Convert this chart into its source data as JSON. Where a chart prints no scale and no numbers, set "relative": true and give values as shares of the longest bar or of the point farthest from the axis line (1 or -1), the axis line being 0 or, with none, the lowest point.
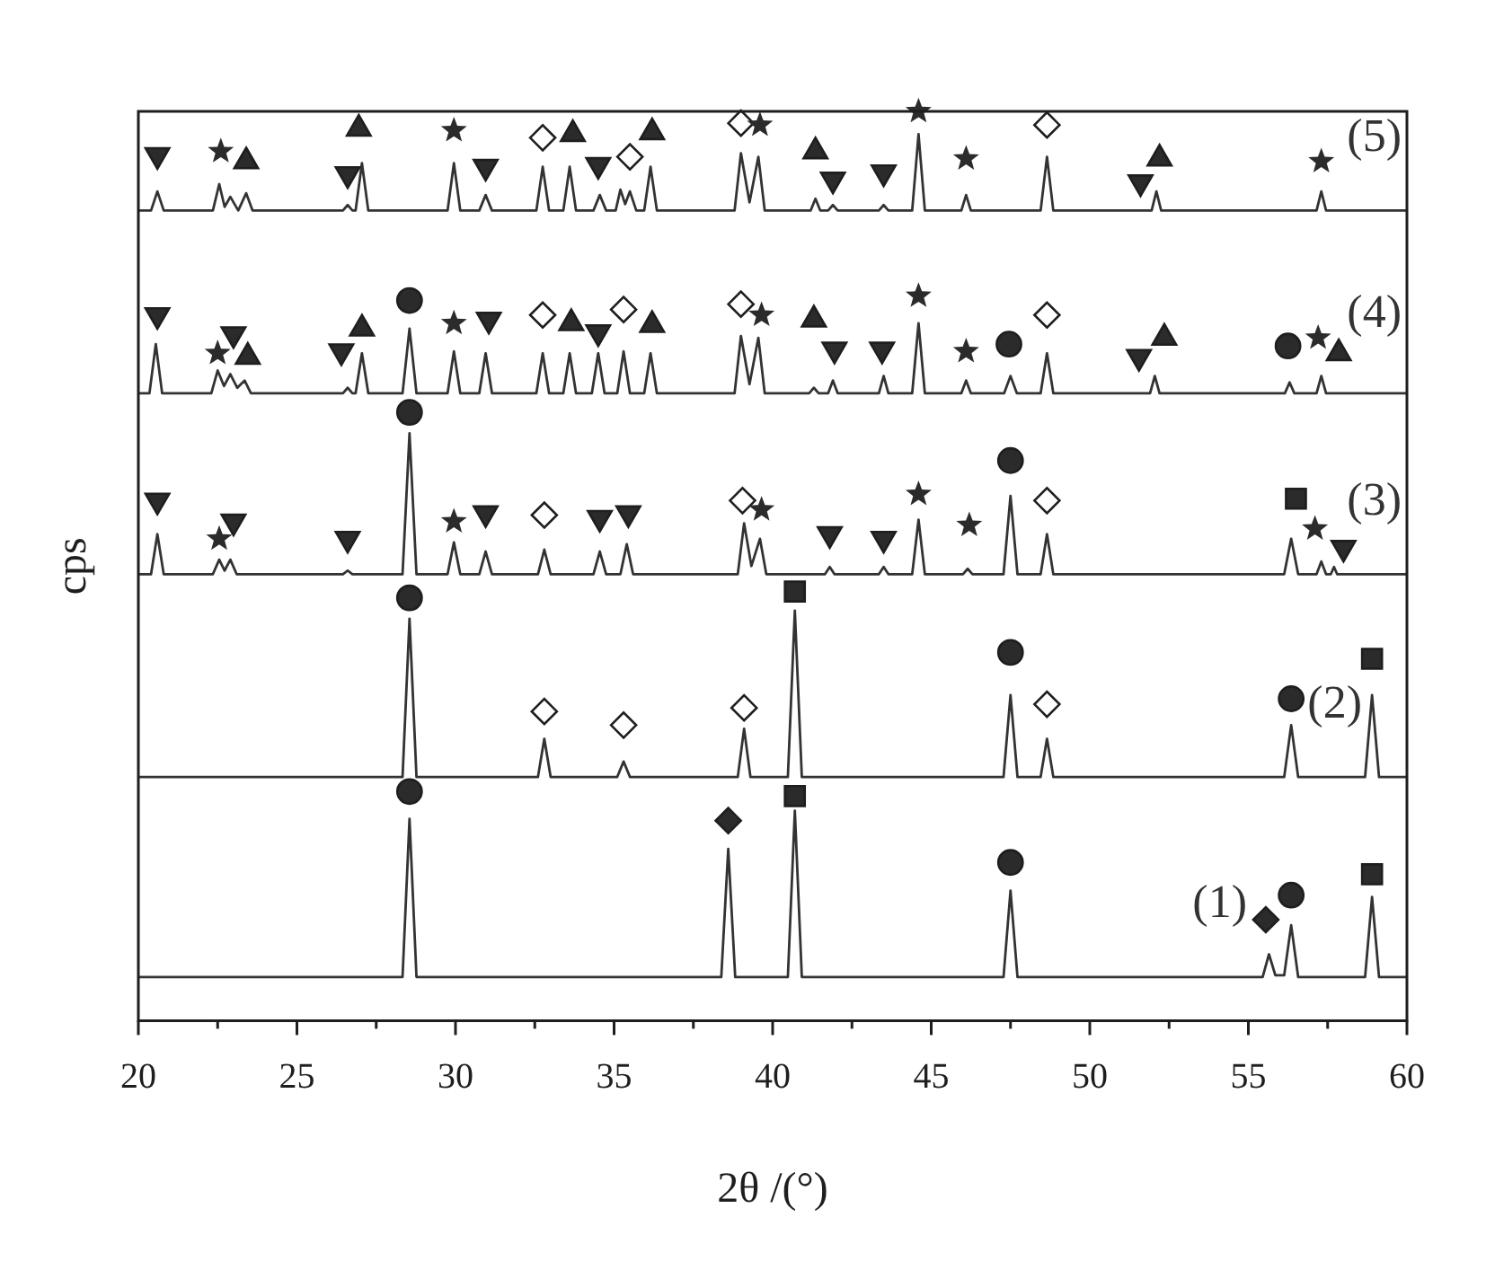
{
  "chart_data": {
    "type": "line",
    "xlabel": "2θ /(°)",
    "ylabel": "cps",
    "relative": true,
    "xlim": [
      20,
      60
    ],
    "xticks": [
      20,
      {
        "value": 22.5,
        "label": null
      },
      25,
      {
        "value": 27.5,
        "label": null
      },
      30,
      {
        "value": 32.5,
        "label": null
      },
      35,
      {
        "value": 37.5,
        "label": null
      },
      40,
      {
        "value": 42.5,
        "label": null
      },
      45,
      {
        "value": 47.5,
        "label": null
      },
      50,
      {
        "value": 52.5,
        "label": null
      },
      55,
      {
        "value": 57.5,
        "label": null
      },
      60
    ],
    "series": [
      {
        "name": "(1)",
        "color": "#333333",
        "x": [
          20,
          28.33,
          28.55,
          28.77,
          38.38,
          38.6,
          38.82,
          40.48,
          40.7,
          40.92,
          47.28,
          47.5,
          47.72,
          55.45,
          55.65,
          55.85,
          56.13,
          56.35,
          56.57,
          58.68,
          58.9,
          59.12,
          60
        ],
        "values": [
          0.048,
          0.048,
          0.222,
          0.048,
          0.048,
          0.189,
          0.048,
          0.048,
          0.231,
          0.048,
          0.048,
          0.143,
          0.048,
          0.048,
          0.073,
          0.05,
          0.05,
          0.105,
          0.048,
          0.048,
          0.136,
          0.048,
          0.048
        ]
      },
      {
        "name": "(2)",
        "color": "#333333",
        "x": [
          20,
          28.33,
          28.55,
          28.77,
          32.6,
          32.8,
          33.0,
          35.1,
          35.3,
          35.5,
          38.9,
          39.1,
          39.3,
          40.48,
          40.7,
          40.92,
          47.28,
          47.5,
          47.72,
          48.45,
          48.65,
          48.85,
          56.13,
          56.35,
          56.57,
          58.68,
          58.9,
          59.12,
          60
        ],
        "values": [
          0.268,
          0.268,
          0.442,
          0.268,
          0.268,
          0.31,
          0.268,
          0.268,
          0.285,
          0.268,
          0.268,
          0.321,
          0.268,
          0.268,
          0.451,
          0.268,
          0.268,
          0.358,
          0.268,
          0.268,
          0.31,
          0.268,
          0.268,
          0.325,
          0.268,
          0.268,
          0.358,
          0.268,
          0.268
        ]
      },
      {
        "name": "(3)",
        "color": "#333333",
        "x": [
          20,
          20.4,
          20.6,
          20.8,
          22.35,
          22.55,
          22.72,
          22.9,
          23.1,
          26.45,
          26.6,
          26.75,
          28.33,
          28.55,
          28.77,
          29.75,
          29.95,
          30.15,
          30.75,
          30.95,
          31.15,
          32.6,
          32.8,
          33.0,
          34.35,
          34.55,
          34.75,
          35.2,
          35.4,
          35.6,
          38.9,
          39.1,
          39.33,
          39.6,
          39.8,
          41.65,
          41.8,
          41.95,
          43.35,
          43.5,
          43.65,
          44.4,
          44.6,
          44.8,
          46.0,
          46.15,
          46.3,
          47.28,
          47.5,
          47.72,
          48.45,
          48.65,
          48.85,
          56.13,
          56.35,
          56.57,
          57.15,
          57.3,
          57.45,
          57.6,
          57.7,
          57.8,
          60
        ],
        "values": [
          0.491,
          0.491,
          0.535,
          0.491,
          0.491,
          0.507,
          0.495,
          0.507,
          0.491,
          0.491,
          0.495,
          0.491,
          0.491,
          0.646,
          0.491,
          0.491,
          0.526,
          0.491,
          0.491,
          0.516,
          0.491,
          0.491,
          0.518,
          0.491,
          0.491,
          0.516,
          0.491,
          0.491,
          0.524,
          0.491,
          0.491,
          0.547,
          0.5,
          0.53,
          0.491,
          0.491,
          0.499,
          0.491,
          0.491,
          0.499,
          0.491,
          0.491,
          0.551,
          0.491,
          0.491,
          0.497,
          0.491,
          0.491,
          0.577,
          0.491,
          0.491,
          0.535,
          0.491,
          0.491,
          0.53,
          0.491,
          0.491,
          0.505,
          0.491,
          0.491,
          0.499,
          0.491,
          0.491
        ]
      },
      {
        "name": "(4)",
        "color": "#333333",
        "x": [
          20,
          20.35,
          20.55,
          20.75,
          22.3,
          22.5,
          22.7,
          22.9,
          23.12,
          23.35,
          23.55,
          26.45,
          26.6,
          26.75,
          26.85,
          27.05,
          27.25,
          28.33,
          28.55,
          28.77,
          29.75,
          29.95,
          30.15,
          30.75,
          30.95,
          31.15,
          32.55,
          32.75,
          32.95,
          33.4,
          33.6,
          33.8,
          34.3,
          34.5,
          34.7,
          35.1,
          35.3,
          35.5,
          35.95,
          36.15,
          36.35,
          38.8,
          39.0,
          39.27,
          39.55,
          39.75,
          41.15,
          41.3,
          41.45,
          41.75,
          41.9,
          42.05,
          43.35,
          43.5,
          43.65,
          44.4,
          44.6,
          44.8,
          45.95,
          46.1,
          46.25,
          47.3,
          47.5,
          47.7,
          48.45,
          48.65,
          48.85,
          51.9,
          52.05,
          52.2,
          56.15,
          56.3,
          56.45,
          57.15,
          57.3,
          57.45,
          60
        ],
        "values": [
          0.69,
          0.69,
          0.744,
          0.69,
          0.69,
          0.715,
          0.698,
          0.711,
          0.696,
          0.704,
          0.69,
          0.69,
          0.696,
          0.69,
          0.69,
          0.734,
          0.69,
          0.69,
          0.761,
          0.69,
          0.69,
          0.736,
          0.69,
          0.69,
          0.734,
          0.69,
          0.69,
          0.734,
          0.69,
          0.69,
          0.734,
          0.69,
          0.69,
          0.734,
          0.69,
          0.69,
          0.736,
          0.69,
          0.69,
          0.734,
          0.69,
          0.69,
          0.753,
          0.7,
          0.751,
          0.69,
          0.69,
          0.696,
          0.69,
          0.69,
          0.704,
          0.69,
          0.69,
          0.709,
          0.69,
          0.69,
          0.767,
          0.69,
          0.69,
          0.704,
          0.69,
          0.69,
          0.709,
          0.69,
          0.69,
          0.734,
          0.69,
          0.69,
          0.709,
          0.69,
          0.69,
          0.702,
          0.69,
          0.69,
          0.709,
          0.69,
          0.69
        ]
      },
      {
        "name": "(5)",
        "color": "#333333",
        "x": [
          20,
          20.4,
          20.6,
          20.8,
          22.35,
          22.55,
          22.72,
          22.9,
          23.15,
          23.4,
          23.6,
          26.45,
          26.6,
          26.75,
          26.85,
          27.05,
          27.25,
          29.75,
          29.95,
          30.15,
          30.75,
          30.95,
          31.15,
          32.55,
          32.75,
          32.95,
          33.4,
          33.6,
          33.8,
          34.35,
          34.55,
          34.75,
          35.05,
          35.2,
          35.35,
          35.5,
          35.7,
          35.95,
          36.15,
          36.35,
          38.8,
          39.0,
          39.27,
          39.55,
          39.75,
          41.2,
          41.35,
          41.5,
          41.75,
          41.9,
          42.05,
          43.35,
          43.5,
          43.65,
          44.4,
          44.6,
          44.8,
          45.95,
          46.1,
          46.25,
          48.45,
          48.65,
          48.85,
          51.95,
          52.1,
          52.25,
          57.15,
          57.3,
          57.45,
          60
        ],
        "values": [
          0.891,
          0.891,
          0.912,
          0.891,
          0.891,
          0.92,
          0.895,
          0.906,
          0.891,
          0.91,
          0.891,
          0.891,
          0.897,
          0.891,
          0.891,
          0.943,
          0.891,
          0.891,
          0.943,
          0.891,
          0.891,
          0.908,
          0.891,
          0.891,
          0.939,
          0.891,
          0.891,
          0.939,
          0.891,
          0.891,
          0.908,
          0.891,
          0.891,
          0.914,
          0.898,
          0.912,
          0.891,
          0.891,
          0.939,
          0.891,
          0.891,
          0.954,
          0.9,
          0.95,
          0.891,
          0.891,
          0.904,
          0.891,
          0.891,
          0.897,
          0.891,
          0.891,
          0.897,
          0.891,
          0.891,
          0.975,
          0.891,
          0.891,
          0.908,
          0.891,
          0.891,
          0.95,
          0.891,
          0.891,
          0.912,
          0.891,
          0.891,
          0.912,
          0.891,
          0.891
        ]
      },
      {
        "type": "scatter",
        "marker": "circle",
        "color": "#2b2b2b",
        "x": [
          28.55,
          47.5,
          56.35,
          28.55,
          47.5,
          56.35,
          28.55,
          47.5,
          28.55,
          47.45,
          56.25
        ],
        "values": [
          0.252,
          0.174,
          0.138,
          0.465,
          0.405,
          0.354,
          0.669,
          0.616,
          0.792,
          0.744,
          0.742
        ]
      },
      {
        "type": "scatter",
        "marker": "square",
        "color": "#2b2b2b",
        "x": [
          40.7,
          58.9,
          40.7,
          58.9,
          56.5
        ],
        "values": [
          0.247,
          0.161,
          0.472,
          0.398,
          0.574
        ]
      },
      {
        "type": "scatter",
        "marker": "diamond",
        "color": "#2b2b2b",
        "x": [
          38.6,
          55.55
        ],
        "values": [
          0.22,
          0.111
        ]
      },
      {
        "type": "scatter",
        "marker": "diamond",
        "color": "#ffffff",
        "x": [
          32.8,
          35.3,
          39.1,
          48.65,
          32.8,
          39.05,
          48.65,
          32.75,
          35.3,
          39.0,
          48.65,
          32.75,
          35.5,
          39.0,
          48.65
        ],
        "values": [
          0.34,
          0.325,
          0.344,
          0.348,
          0.556,
          0.572,
          0.572,
          0.776,
          0.782,
          0.788,
          0.776,
          0.971,
          0.95,
          0.987,
          0.985
        ]
      },
      {
        "type": "scatter",
        "marker": "star",
        "color": "#2b2b2b",
        "x": [
          22.55,
          29.95,
          39.65,
          44.6,
          46.2,
          57.1,
          22.5,
          29.95,
          39.65,
          44.6,
          46.1,
          57.2,
          22.6,
          29.95,
          39.6,
          44.6,
          46.1,
          57.3
        ],
        "values": [
          0.53,
          0.549,
          0.562,
          0.579,
          0.545,
          0.541,
          0.734,
          0.767,
          0.776,
          0.797,
          0.736,
          0.751,
          0.956,
          0.979,
          0.985,
          1.0,
          0.948,
          0.945
        ]
      },
      {
        "type": "scatter",
        "marker": "triangle",
        "color": "#2b2b2b",
        "x": [
          23.45,
          27.05,
          33.65,
          36.2,
          41.3,
          52.35,
          57.85,
          23.4,
          26.95,
          33.7,
          36.2,
          41.35,
          52.2
        ],
        "values": [
          0.73,
          0.761,
          0.767,
          0.765,
          0.771,
          0.751,
          0.734,
          0.945,
          0.981,
          0.975,
          0.977,
          0.956,
          0.948
        ]
      },
      {
        "type": "scatter",
        "marker": "triangle-down",
        "color": "#2b2b2b",
        "x": [
          20.6,
          23.0,
          26.6,
          30.95,
          34.55,
          35.45,
          41.8,
          43.5,
          58.0,
          20.6,
          23.0,
          26.4,
          31.05,
          34.5,
          41.95,
          43.45,
          51.55,
          20.6,
          26.6,
          30.95,
          34.5,
          41.9,
          43.5,
          51.6
        ],
        "values": [
          0.572,
          0.549,
          0.53,
          0.558,
          0.553,
          0.558,
          0.535,
          0.53,
          0.52,
          0.776,
          0.755,
          0.736,
          0.771,
          0.757,
          0.738,
          0.738,
          0.73,
          0.952,
          0.931,
          0.939,
          0.941,
          0.925,
          0.933,
          0.922
        ]
      }
    ]
  }
}
